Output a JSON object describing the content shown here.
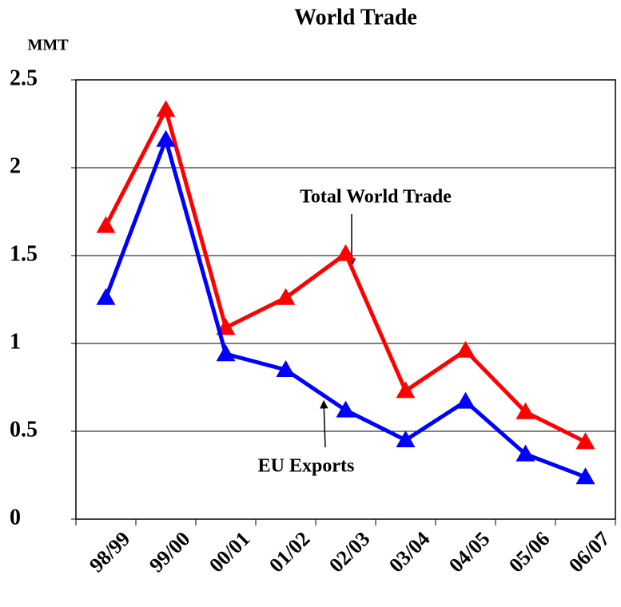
{
  "chart_data": {
    "type": "line",
    "title": "World Trade",
    "y_label": "MMT",
    "categories": [
      "98/99",
      "99/00",
      "00/01",
      "01/02",
      "02/03",
      "03/04",
      "04/05",
      "05/06",
      "06/07"
    ],
    "series": [
      {
        "name": "Total World Trade",
        "color": "#ff0000",
        "values": [
          1.67,
          2.33,
          1.09,
          1.26,
          1.51,
          0.73,
          0.96,
          0.61,
          0.44
        ]
      },
      {
        "name": "EU Exports",
        "color": "#0000ff",
        "values": [
          1.26,
          2.16,
          0.94,
          0.85,
          0.62,
          0.45,
          0.67,
          0.37,
          0.24
        ]
      }
    ],
    "ylim": [
      0,
      2.5
    ],
    "yticks": [
      0,
      0.5,
      1,
      1.5,
      2,
      2.5
    ],
    "grid": true
  }
}
